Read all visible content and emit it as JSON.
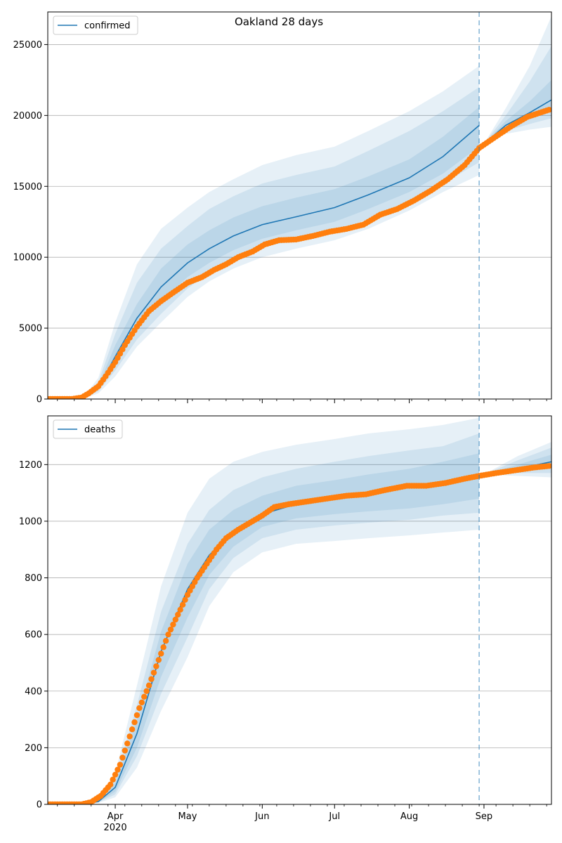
{
  "figure": {
    "suptitle": "Oakland 28 days"
  },
  "colors": {
    "band": "#1f77b4",
    "model_line": "#1f77b4",
    "observed": "#ff7f0e",
    "vline": "#1f77b4",
    "grid": "#b0b0b0"
  },
  "chart_data": [
    {
      "type": "line",
      "name": "confirmed-panel",
      "legend": {
        "label": "confirmed",
        "placement": "top-left"
      },
      "ylim": [
        0,
        27300
      ],
      "yticks": [
        0,
        5000,
        10000,
        15000,
        20000,
        25000
      ],
      "ytick_labels": [
        "0",
        "5000",
        "10000",
        "15000",
        "20000",
        "25000"
      ],
      "xlim": [
        "2020-03-04",
        "2020-09-29"
      ],
      "grid": "horizontal",
      "forecast_start": "2020-08-30",
      "model": {
        "x": [
          "2020-03-04",
          "2020-03-14",
          "2020-03-20",
          "2020-03-25",
          "2020-04-01",
          "2020-04-10",
          "2020-04-20",
          "2020-05-01",
          "2020-05-10",
          "2020-05-20",
          "2020-06-01",
          "2020-06-15",
          "2020-07-01",
          "2020-07-15",
          "2020-08-01",
          "2020-08-15",
          "2020-08-30",
          "2020-09-01",
          "2020-09-10",
          "2020-09-20",
          "2020-09-29"
        ],
        "y": [
          0,
          0,
          200,
          800,
          3000,
          5700,
          7900,
          9600,
          10600,
          11500,
          12300,
          12850,
          13500,
          14400,
          15600,
          17100,
          19300,
          18000,
          19300,
          20200,
          21100
        ]
      },
      "bands": [
        {
          "level": "outer",
          "lower": [
            0,
            0,
            100,
            400,
            1600,
            3700,
            5400,
            7200,
            8300,
            9200,
            10000,
            10600,
            11200,
            12000,
            13300,
            14600,
            15800,
            18000,
            18700,
            19000,
            19200
          ],
          "upper": [
            0,
            0,
            400,
            1500,
            5400,
            9500,
            12000,
            13500,
            14600,
            15500,
            16500,
            17200,
            17800,
            18900,
            20300,
            21700,
            23500,
            18000,
            20500,
            23500,
            27000
          ]
        },
        {
          "level": "middle",
          "lower": [
            0,
            0,
            140,
            550,
            2000,
            4200,
            6000,
            7800,
            8900,
            9800,
            10700,
            11200,
            11800,
            12700,
            13900,
            15200,
            16700,
            18000,
            18900,
            19400,
            19800
          ],
          "upper": [
            0,
            0,
            320,
            1200,
            4600,
            8200,
            10600,
            12200,
            13400,
            14300,
            15200,
            15800,
            16400,
            17500,
            18900,
            20300,
            22000,
            18000,
            20000,
            22400,
            24900
          ]
        },
        {
          "level": "inner",
          "lower": [
            0,
            0,
            170,
            650,
            2400,
            4900,
            6900,
            8600,
            9600,
            10500,
            11300,
            11900,
            12500,
            13400,
            14600,
            15900,
            17800,
            18000,
            19100,
            19800,
            20500
          ],
          "upper": [
            0,
            0,
            250,
            950,
            3800,
            6700,
            9200,
            10900,
            11900,
            12800,
            13600,
            14200,
            14800,
            15700,
            16900,
            18500,
            20600,
            18000,
            19600,
            21000,
            22500
          ]
        }
      ],
      "observed": {
        "x": [
          "2020-03-04",
          "2020-03-14",
          "2020-03-18",
          "2020-03-21",
          "2020-03-25",
          "2020-03-28",
          "2020-04-01",
          "2020-04-05",
          "2020-04-10",
          "2020-04-15",
          "2020-04-20",
          "2020-04-25",
          "2020-05-01",
          "2020-05-07",
          "2020-05-12",
          "2020-05-17",
          "2020-05-22",
          "2020-05-28",
          "2020-06-02",
          "2020-06-08",
          "2020-06-15",
          "2020-06-22",
          "2020-06-29",
          "2020-07-06",
          "2020-07-13",
          "2020-07-20",
          "2020-07-27",
          "2020-08-03",
          "2020-08-10",
          "2020-08-17",
          "2020-08-24",
          "2020-08-30",
          "2020-09-05",
          "2020-09-12",
          "2020-09-19",
          "2020-09-28"
        ],
        "y": [
          0,
          0,
          100,
          400,
          900,
          1600,
          2600,
          3800,
          5100,
          6200,
          6900,
          7500,
          8200,
          8600,
          9100,
          9500,
          10000,
          10400,
          10900,
          11200,
          11250,
          11500,
          11800,
          12000,
          12300,
          13000,
          13400,
          14000,
          14700,
          15500,
          16500,
          17700,
          18400,
          19200,
          19900,
          20400
        ]
      }
    },
    {
      "type": "line",
      "name": "deaths-panel",
      "legend": {
        "label": "deaths",
        "placement": "top-left"
      },
      "ylim": [
        0,
        1372
      ],
      "yticks": [
        0,
        200,
        400,
        600,
        800,
        1000,
        1200
      ],
      "ytick_labels": [
        "0",
        "200",
        "400",
        "600",
        "800",
        "1000",
        "1200"
      ],
      "xlim": [
        "2020-03-04",
        "2020-09-29"
      ],
      "xtick_dates": [
        "2020-04-01",
        "2020-05-01",
        "2020-06-01",
        "2020-07-01",
        "2020-08-01",
        "2020-09-01"
      ],
      "xtick_labels": [
        "Apr\n2020",
        "May",
        "Jun",
        "Jul",
        "Aug",
        "Sep"
      ],
      "grid": "horizontal",
      "forecast_start": "2020-08-30",
      "model": {
        "x": [
          "2020-03-04",
          "2020-03-18",
          "2020-03-25",
          "2020-04-01",
          "2020-04-10",
          "2020-04-20",
          "2020-05-01",
          "2020-05-10",
          "2020-05-20",
          "2020-06-01",
          "2020-06-15",
          "2020-07-01",
          "2020-07-15",
          "2020-08-01",
          "2020-08-15",
          "2020-08-30",
          "2020-09-01",
          "2020-09-15",
          "2020-09-29"
        ],
        "y": [
          0,
          0,
          10,
          60,
          250,
          540,
          760,
          880,
          960,
          1025,
          1060,
          1080,
          1095,
          1120,
          1140,
          1160,
          1165,
          1185,
          1210
        ]
      },
      "bands": [
        {
          "level": "outer",
          "lower": [
            0,
            0,
            5,
            25,
            130,
            330,
            520,
            700,
            820,
            890,
            920,
            930,
            940,
            950,
            960,
            970,
            1165,
            1160,
            1155
          ],
          "upper": [
            0,
            0,
            20,
            110,
            420,
            770,
            1030,
            1150,
            1210,
            1245,
            1270,
            1290,
            1310,
            1325,
            1340,
            1365,
            1165,
            1230,
            1280
          ]
        },
        {
          "level": "middle",
          "lower": [
            0,
            0,
            7,
            35,
            170,
            390,
            590,
            760,
            870,
            940,
            970,
            985,
            995,
            1005,
            1020,
            1030,
            1165,
            1170,
            1170
          ],
          "upper": [
            0,
            0,
            16,
            90,
            350,
            680,
            920,
            1040,
            1110,
            1155,
            1185,
            1210,
            1230,
            1250,
            1265,
            1310,
            1165,
            1215,
            1260
          ]
        },
        {
          "level": "inner",
          "lower": [
            0,
            0,
            8,
            45,
            200,
            450,
            660,
            810,
            910,
            980,
            1010,
            1025,
            1035,
            1045,
            1060,
            1080,
            1165,
            1178,
            1190
          ],
          "upper": [
            0,
            0,
            13,
            75,
            300,
            610,
            850,
            970,
            1040,
            1090,
            1125,
            1145,
            1165,
            1185,
            1210,
            1240,
            1165,
            1200,
            1235
          ]
        }
      ],
      "observed": {
        "x": [
          "2020-03-04",
          "2020-03-18",
          "2020-03-22",
          "2020-03-26",
          "2020-03-30",
          "2020-04-03",
          "2020-04-07",
          "2020-04-11",
          "2020-04-15",
          "2020-04-19",
          "2020-04-23",
          "2020-04-27",
          "2020-05-01",
          "2020-05-05",
          "2020-05-09",
          "2020-05-13",
          "2020-05-17",
          "2020-05-22",
          "2020-05-27",
          "2020-06-01",
          "2020-06-06",
          "2020-06-12",
          "2020-06-20",
          "2020-06-28",
          "2020-07-06",
          "2020-07-14",
          "2020-07-22",
          "2020-07-31",
          "2020-08-08",
          "2020-08-16",
          "2020-08-24",
          "2020-08-30",
          "2020-09-06",
          "2020-09-14",
          "2020-09-22",
          "2020-09-28"
        ],
        "y": [
          0,
          0,
          8,
          30,
          70,
          140,
          240,
          340,
          420,
          510,
          600,
          670,
          740,
          800,
          850,
          900,
          940,
          970,
          995,
          1020,
          1050,
          1060,
          1070,
          1080,
          1090,
          1095,
          1110,
          1125,
          1125,
          1135,
          1150,
          1160,
          1170,
          1180,
          1190,
          1195
        ]
      }
    }
  ]
}
